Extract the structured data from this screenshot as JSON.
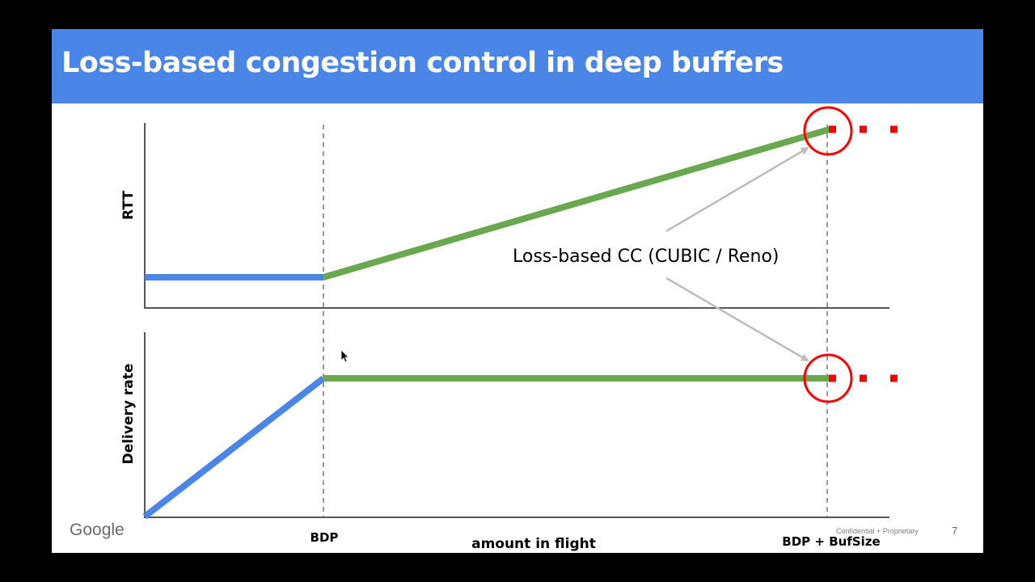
{
  "slide": {
    "title": "Loss-based congestion control in deep buffers",
    "brand": "Google",
    "confidential": "Confidential + Proprietary",
    "page_number": "7"
  },
  "diagram": {
    "top_axis_label": "RTT",
    "bottom_axis_label": "Delivery rate",
    "x_axis_label": "amount in flight",
    "x_ticks": [
      "BDP",
      "BDP + BufSize"
    ],
    "annotation": "Loss-based CC (CUBIC / Reno)",
    "colors": {
      "title_bar": "#4a86e8",
      "below_bdp_line": "#4a86e8",
      "above_bdp_line": "#6aa84f",
      "loss_marker": "#ff0000",
      "arrow": "#bdbdbd",
      "guide": "#999999"
    }
  }
}
